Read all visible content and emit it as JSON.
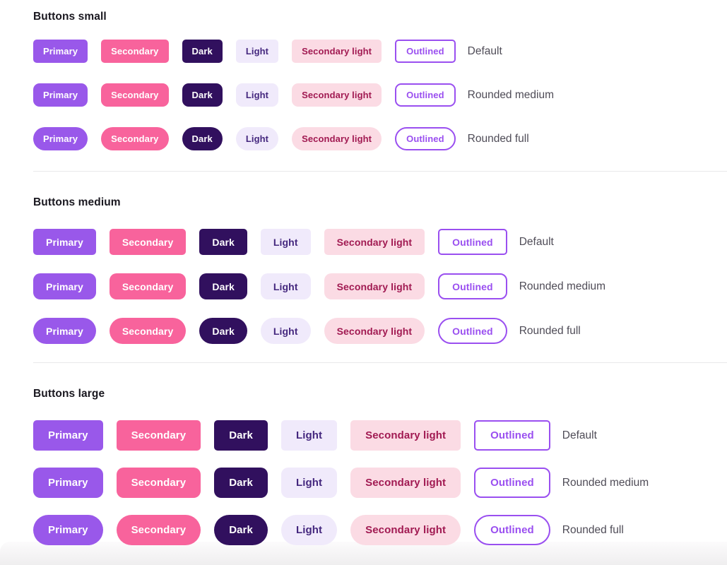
{
  "colors": {
    "primary": "#9958ea",
    "secondary": "#f8639c",
    "dark": "#31105e",
    "light_bg": "#f0eafb",
    "light_text": "#44277e",
    "secondary_light_bg": "#fbdbe4",
    "secondary_light_text": "#a11a52",
    "outlined_accent": "#9a4ff0",
    "title_text": "#19171f",
    "label_text": "#4f4c57",
    "divider": "#e9e8ea"
  },
  "button_styles": [
    {
      "id": "primary",
      "label": "Primary"
    },
    {
      "id": "secondary",
      "label": "Secondary"
    },
    {
      "id": "dark",
      "label": "Dark"
    },
    {
      "id": "light",
      "label": "Light"
    },
    {
      "id": "secondary-light",
      "label": "Secondary light"
    },
    {
      "id": "outlined",
      "label": "Outlined"
    }
  ],
  "sections": [
    {
      "id": "small",
      "title": "Buttons small",
      "rows": [
        {
          "variant": "default",
          "label": "Default"
        },
        {
          "variant": "rounded-medium",
          "label": "Rounded medium"
        },
        {
          "variant": "rounded-full",
          "label": "Rounded full"
        }
      ]
    },
    {
      "id": "medium",
      "title": "Buttons medium",
      "rows": [
        {
          "variant": "default",
          "label": "Default"
        },
        {
          "variant": "rounded-medium",
          "label": "Rounded medium"
        },
        {
          "variant": "rounded-full",
          "label": "Rounded full"
        }
      ]
    },
    {
      "id": "large",
      "title": "Buttons large",
      "rows": [
        {
          "variant": "default",
          "label": "Default"
        },
        {
          "variant": "rounded-medium",
          "label": "Rounded medium"
        },
        {
          "variant": "rounded-full",
          "label": "Rounded full"
        }
      ]
    }
  ]
}
